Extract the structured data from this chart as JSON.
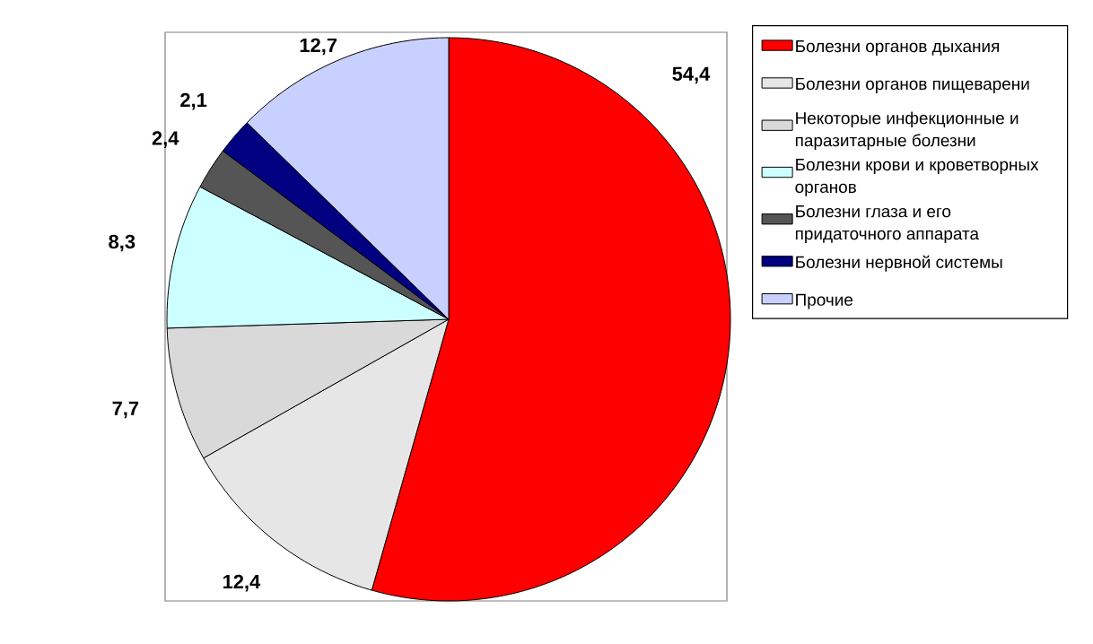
{
  "chart_data": {
    "type": "pie",
    "categories": [
      "Болезни органов дыхания",
      "Болезни органов пищеварени",
      "Некоторые инфекционные и паразитарные болезни",
      "Болезни крови и кроветворных органов",
      "Болезни глаза и его придаточного аппарата",
      "Болезни нервной системы",
      "Прочие"
    ],
    "values": [
      54.4,
      12.4,
      7.7,
      8.3,
      2.4,
      2.1,
      12.7
    ],
    "value_labels": [
      "54,4",
      "12,4",
      "7,7",
      "8,3",
      "2,4",
      "2,1",
      "12,7"
    ],
    "colors": [
      "#ff0000",
      "#e6e6e6",
      "#d9d9d9",
      "#ccffff",
      "#555555",
      "#000080",
      "#c8d0ff"
    ],
    "legend": "right"
  }
}
